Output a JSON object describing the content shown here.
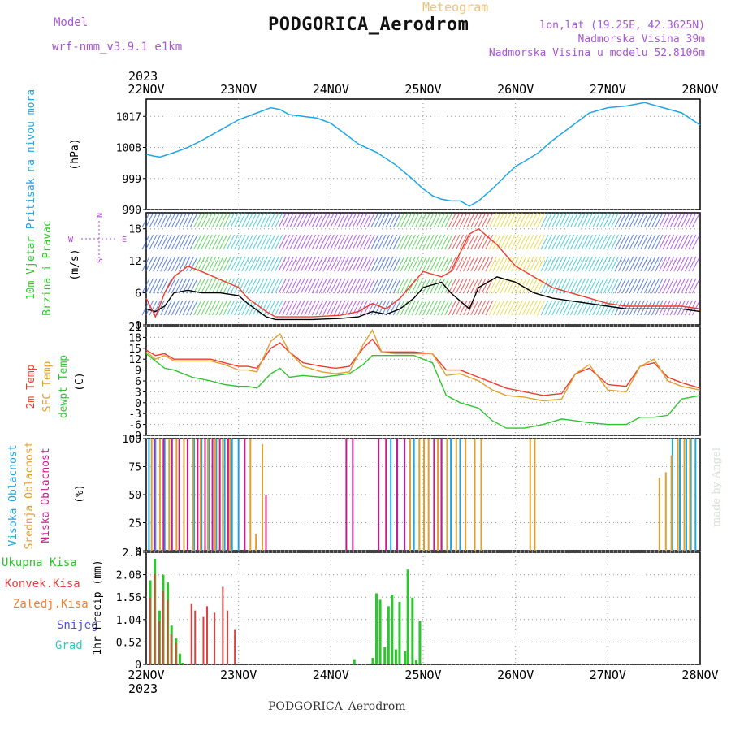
{
  "header": {
    "model_label": "Model",
    "model_name": "wrf-nmm_v3.9.1 e1km",
    "product": "Meteogram",
    "station": "PODGORICA_Aerodrom",
    "lonlat": "lon,lat (19.25E, 42.3625N)",
    "elevation": "Nadmorska Visina 39m",
    "elevation_model": "Nadmorska Visina u modelu 52.8106m"
  },
  "footer": {
    "station": "PODGORICA_Aerodrom"
  },
  "credit": "made by Angel",
  "x_axis": {
    "year": "2023",
    "ticks": [
      "22NOV",
      "23NOV",
      "24NOV",
      "25NOV",
      "26NOV",
      "27NOV",
      "28NOV"
    ]
  },
  "colors": {
    "pressure": "#1ea5e6",
    "temp2m": "#ee3b2b",
    "sfctemp": "#e0a030",
    "dewpt": "#2fc52f",
    "high_cloud": "#1ea5e6",
    "mid_cloud": "#e0a030",
    "low_cloud": "#cc1a8c",
    "precip_total": "#2fc52f",
    "precip_conv": "#e04040",
    "precip_frozen": "#f08030",
    "snow": "#5050e0",
    "hail": "#30c8c0",
    "wind_mean": "#000000",
    "wind_gust": "#ee3b2b",
    "compass": "#b040e0"
  },
  "chart_data": [
    {
      "type": "line",
      "panel": "pressure",
      "ylabel": [
        "Pritisak na nivou mora",
        "(hPa)"
      ],
      "yticks": [
        990,
        999,
        1008,
        1017
      ],
      "ylim": [
        990,
        1022
      ],
      "x_unit": "days from 22NOV 00 UTC",
      "series": [
        {
          "name": "Pritisak na nivou mora",
          "color_key": "pressure",
          "x": [
            0,
            0.08,
            0.15,
            0.3,
            0.45,
            0.6,
            0.8,
            1.0,
            1.2,
            1.35,
            1.45,
            1.55,
            1.7,
            1.85,
            2.0,
            2.15,
            2.3,
            2.5,
            2.7,
            2.9,
            3.0,
            3.1,
            3.2,
            3.3,
            3.4,
            3.5,
            3.6,
            3.75,
            3.9,
            4.0,
            4.1,
            4.25,
            4.4,
            4.6,
            4.8,
            5.0,
            5.2,
            5.4,
            5.6,
            5.8,
            6.0
          ],
          "y": [
            1006,
            1005.5,
            1005.2,
            1006.5,
            1008,
            1010,
            1013,
            1016,
            1018,
            1019.5,
            1019,
            1017.5,
            1017,
            1016.5,
            1015,
            1012,
            1009,
            1006.5,
            1003,
            998.5,
            996,
            994,
            993,
            992.5,
            992.5,
            991,
            992.5,
            996,
            1000,
            1002.5,
            1004,
            1006.5,
            1010,
            1014,
            1018,
            1019.5,
            1020,
            1021,
            1019.5,
            1018,
            1014.5
          ]
        }
      ]
    },
    {
      "type": "line",
      "panel": "wind",
      "ylabel": [
        "10m Vjetar",
        "Brzina i Pravac",
        "(m/s)"
      ],
      "compass": [
        "N",
        "E",
        "S",
        "W"
      ],
      "yticks": [
        0,
        6,
        12,
        18
      ],
      "ylim": [
        0,
        21
      ],
      "x_unit": "days from 22NOV 00 UTC",
      "series": [
        {
          "name": "mean",
          "color_key": "wind_mean",
          "x": [
            0,
            0.1,
            0.2,
            0.3,
            0.45,
            0.6,
            0.8,
            1.0,
            1.1,
            1.3,
            1.4,
            1.5,
            1.8,
            2.1,
            2.3,
            2.45,
            2.6,
            2.75,
            2.9,
            3.0,
            3.2,
            3.3,
            3.5,
            3.6,
            3.8,
            4.0,
            4.2,
            4.4,
            4.6,
            4.8,
            5.0,
            5.2,
            5.4,
            5.6,
            5.8,
            6.0
          ],
          "y": [
            3,
            2.5,
            3.5,
            6,
            6.5,
            6,
            6,
            5.5,
            4,
            1.5,
            1,
            1,
            1,
            1.2,
            1.5,
            2.5,
            2,
            3,
            5,
            7,
            8,
            6,
            3,
            7,
            9,
            8,
            6,
            5,
            4.5,
            4,
            3.5,
            3,
            3,
            3,
            3,
            2.5
          ]
        },
        {
          "name": "gust",
          "color_key": "wind_gust",
          "x": [
            0,
            0.1,
            0.2,
            0.3,
            0.45,
            0.6,
            0.8,
            1.0,
            1.1,
            1.3,
            1.4,
            1.5,
            1.8,
            2.1,
            2.3,
            2.45,
            2.6,
            2.75,
            2.9,
            3.0,
            3.2,
            3.3,
            3.5,
            3.6,
            3.8,
            4.0,
            4.2,
            4.4,
            4.6,
            4.8,
            5.0,
            5.2,
            5.4,
            5.6,
            5.8,
            6.0
          ],
          "y": [
            5,
            1.5,
            6,
            9,
            11,
            10,
            8.5,
            7,
            5,
            2.5,
            1.5,
            1.5,
            1.5,
            1.8,
            2.5,
            4,
            3,
            5,
            8,
            10,
            9,
            10,
            17,
            18,
            15,
            11,
            9,
            7,
            6,
            5,
            4,
            3.5,
            3.5,
            3.5,
            3.5,
            3
          ]
        }
      ]
    },
    {
      "type": "line",
      "panel": "temperature",
      "ylabel": [
        "2m Temp",
        "SFC Temp",
        "dewpt Temp",
        "(C)"
      ],
      "yticks": [
        -9,
        -6,
        -3,
        0,
        3,
        6,
        9,
        12,
        15,
        18,
        21
      ],
      "ylim": [
        -9,
        21
      ],
      "x_unit": "days from 22NOV 00 UTC",
      "series": [
        {
          "name": "2m Temp",
          "color_key": "temp2m",
          "x": [
            0,
            0.1,
            0.2,
            0.3,
            0.5,
            0.7,
            0.85,
            1.0,
            1.1,
            1.2,
            1.35,
            1.45,
            1.55,
            1.7,
            1.9,
            2.05,
            2.2,
            2.35,
            2.45,
            2.55,
            2.7,
            2.9,
            3.1,
            3.25,
            3.4,
            3.6,
            3.75,
            3.9,
            4.1,
            4.3,
            4.5,
            4.65,
            4.8,
            5.0,
            5.2,
            5.35,
            5.5,
            5.65,
            5.8,
            6.0
          ],
          "y": [
            14.5,
            13,
            13.5,
            12,
            12,
            12,
            11,
            10,
            10,
            9.5,
            15,
            16.5,
            14,
            11,
            10,
            9.5,
            10,
            15,
            17.5,
            14,
            14,
            14,
            13.5,
            9,
            9,
            7,
            5.5,
            4,
            3,
            2,
            2.5,
            8,
            9.5,
            5,
            4.5,
            10,
            11,
            7,
            5.5,
            4
          ]
        },
        {
          "name": "SFC Temp",
          "color_key": "sfctemp",
          "x": [
            0,
            0.1,
            0.2,
            0.3,
            0.5,
            0.7,
            0.85,
            1.0,
            1.1,
            1.2,
            1.35,
            1.45,
            1.55,
            1.7,
            1.9,
            2.05,
            2.2,
            2.35,
            2.45,
            2.55,
            2.7,
            2.9,
            3.1,
            3.25,
            3.4,
            3.6,
            3.75,
            3.9,
            4.1,
            4.3,
            4.5,
            4.65,
            4.8,
            5.0,
            5.2,
            5.35,
            5.5,
            5.65,
            5.8,
            6.0
          ],
          "y": [
            14,
            12,
            13,
            11.5,
            11.5,
            11.5,
            10.5,
            9,
            9,
            8.5,
            17,
            19,
            14,
            10,
            8.5,
            8,
            8.5,
            16,
            20,
            14,
            13.5,
            13.5,
            13.5,
            7.5,
            8,
            6,
            3.5,
            2,
            1.5,
            0.5,
            1,
            8,
            10.5,
            3.5,
            3,
            10,
            12,
            6,
            4.5,
            3.5
          ]
        },
        {
          "name": "dewpt Temp",
          "color_key": "dewpt",
          "x": [
            0,
            0.1,
            0.2,
            0.3,
            0.5,
            0.7,
            0.85,
            1.0,
            1.1,
            1.2,
            1.35,
            1.45,
            1.55,
            1.7,
            1.9,
            2.05,
            2.2,
            2.35,
            2.45,
            2.55,
            2.7,
            2.9,
            3.1,
            3.25,
            3.4,
            3.6,
            3.75,
            3.9,
            4.1,
            4.3,
            4.5,
            4.65,
            4.8,
            5.0,
            5.2,
            5.35,
            5.5,
            5.65,
            5.8,
            6.0
          ],
          "y": [
            13.5,
            11.5,
            9.5,
            9,
            7,
            6,
            5,
            4.5,
            4.5,
            4,
            8,
            9.5,
            7,
            7.5,
            7,
            7.5,
            8,
            10.5,
            13,
            13,
            13,
            13,
            11,
            2,
            0,
            -1.5,
            -5,
            -7,
            -7,
            -6,
            -4.5,
            -5,
            -5.5,
            -6,
            -6,
            -4,
            -4,
            -3.5,
            1,
            2
          ]
        }
      ]
    },
    {
      "type": "bar",
      "panel": "cloud",
      "ylabel": [
        "Visoka Oblacnost",
        "Srednja Oblacnost",
        "Niska Oblacnost",
        "(%)"
      ],
      "yticks": [
        0,
        25,
        50,
        75,
        100
      ],
      "ylim": [
        0,
        100
      ],
      "x_unit": "days from 22NOV 00 UTC",
      "series": [
        {
          "name": "Visoka Oblacnost",
          "color_key": "high_cloud",
          "x": [
            0.03,
            0.1,
            0.2,
            0.28,
            0.36,
            0.45,
            0.52,
            0.6,
            0.68,
            0.76,
            0.85,
            0.93,
            1.0,
            2.65,
            2.72,
            2.8,
            2.9,
            3.2,
            3.3,
            3.4,
            5.7,
            5.78,
            5.85,
            5.9,
            5.95
          ],
          "values": [
            100,
            100,
            100,
            100,
            100,
            100,
            100,
            100,
            100,
            100,
            100,
            100,
            100,
            100,
            100,
            100,
            100,
            100,
            100,
            100,
            100,
            100,
            100,
            100,
            100
          ]
        },
        {
          "name": "Srednja Oblacnost",
          "color_key": "mid_cloud",
          "x": [
            0.05,
            0.14,
            0.24,
            0.32,
            0.4,
            0.5,
            0.58,
            0.66,
            0.74,
            0.82,
            0.9,
            1.12,
            1.18,
            1.25,
            2.85,
            2.95,
            3.0,
            3.05,
            3.15,
            3.25,
            3.35,
            3.45,
            3.55,
            3.62,
            4.15,
            4.2,
            5.55,
            5.62,
            5.68,
            5.75,
            5.82,
            5.88
          ],
          "values": [
            100,
            100,
            100,
            100,
            100,
            100,
            100,
            100,
            100,
            100,
            100,
            100,
            15,
            95,
            100,
            100,
            100,
            100,
            100,
            100,
            100,
            100,
            100,
            100,
            100,
            100,
            65,
            70,
            85,
            100,
            100,
            100
          ]
        },
        {
          "name": "Niska Oblacnost",
          "color_key": "low_cloud",
          "x": [
            0.07,
            0.17,
            0.26,
            0.34,
            0.43,
            0.54,
            0.62,
            0.7,
            0.78,
            0.87,
            1.05,
            1.28,
            2.15,
            2.22,
            2.5,
            2.58,
            2.7,
            2.78,
            3.1,
            3.18
          ],
          "values": [
            100,
            100,
            100,
            100,
            100,
            100,
            100,
            100,
            100,
            100,
            100,
            50,
            100,
            100,
            100,
            100,
            100,
            100,
            100,
            100
          ]
        }
      ]
    },
    {
      "type": "bar",
      "panel": "precip",
      "ylabel": [
        "1hr Precip (mm)"
      ],
      "legend": [
        "Ukupna Kisa",
        "Konvek.Kisa",
        "Zaledj.Kisa",
        "Snijeg",
        "Grad"
      ],
      "yticks": [
        0,
        0.52,
        1.04,
        1.56,
        2.08,
        2.6
      ],
      "ylim": [
        0,
        2.6
      ],
      "x_unit": "days from 22NOV 00 UTC",
      "series": [
        {
          "name": "Ukupna Kisa",
          "color_key": "precip_total",
          "x": [
            0.04,
            0.09,
            0.14,
            0.18,
            0.23,
            0.27,
            0.32,
            0.36,
            0.39,
            2.25,
            2.45,
            2.49,
            2.53,
            2.58,
            2.62,
            2.66,
            2.7,
            2.74,
            2.8,
            2.83,
            2.88,
            2.92,
            2.96
          ],
          "values": [
            1.95,
            2.45,
            1.25,
            2.08,
            1.9,
            0.9,
            0.6,
            0.25,
            0.04,
            0.12,
            0.15,
            1.65,
            1.5,
            0.4,
            1.35,
            1.62,
            0.35,
            1.45,
            0.3,
            2.2,
            1.55,
            0.1,
            1.0
          ]
        },
        {
          "name": "Konvek.Kisa",
          "color_key": "precip_conv",
          "x": [
            0.04,
            0.09,
            0.14,
            0.18,
            0.23,
            0.27,
            0.32,
            0.49,
            0.53,
            0.62,
            0.66,
            0.74,
            0.83,
            0.88,
            0.96
          ],
          "values": [
            1.55,
            2.1,
            1.0,
            1.7,
            1.5,
            0.7,
            0.5,
            1.4,
            1.25,
            1.1,
            1.35,
            1.2,
            1.8,
            1.25,
            0.8
          ]
        }
      ]
    }
  ]
}
